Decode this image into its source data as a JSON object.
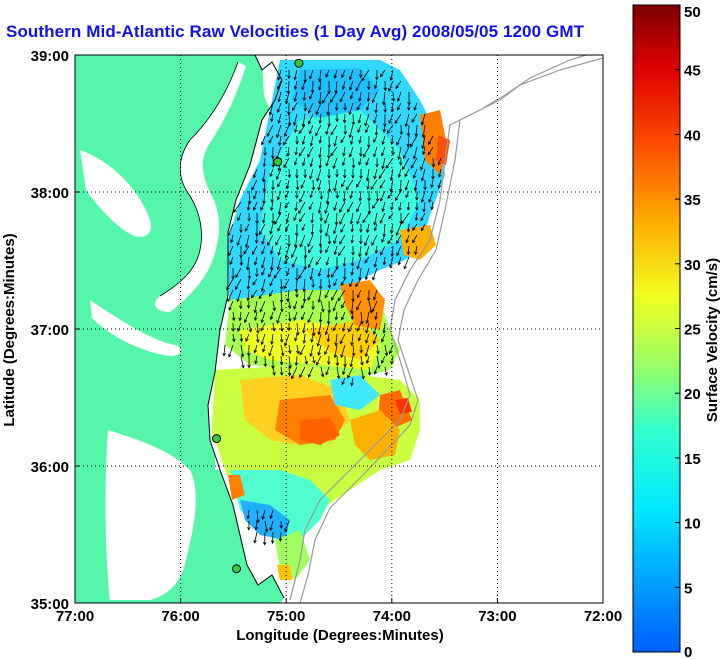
{
  "title": "Southern Mid-Atlantic Raw Velocities (1 Day Avg) 2008/05/05 1200 GMT",
  "colors": {
    "title": "#1010ee",
    "land": "#55f5aa",
    "site_marker": "#33cc33",
    "vector": "#000000",
    "grid": "#000000"
  },
  "chart_data": {
    "type": "heatmap",
    "xlabel": "Longitude (Degrees:Minutes)",
    "ylabel": "Latitude (Degrees:Minutes)",
    "xlim": [
      -77,
      -72
    ],
    "ylim": [
      35,
      39
    ],
    "x_tick_labels": [
      "77:00",
      "76:00",
      "75:00",
      "74:00",
      "73:00",
      "72:00"
    ],
    "y_tick_labels": [
      "35:00",
      "36:00",
      "37:00",
      "38:00",
      "39:00"
    ],
    "grid": true,
    "colorbar": {
      "label": "Surface Velocity (cm/s)",
      "range": [
        0,
        50
      ],
      "ticks": [
        "0",
        "5",
        "10",
        "15",
        "20",
        "25",
        "30",
        "35",
        "40",
        "45",
        "50"
      ],
      "colormap": "jet"
    },
    "site_markers": [
      {
        "lon": -74.88,
        "lat": 38.94
      },
      {
        "lon": -75.08,
        "lat": 38.22
      },
      {
        "lon": -75.66,
        "lat": 36.2
      },
      {
        "lon": -75.47,
        "lat": 35.25
      }
    ],
    "velocity_field_regions": [
      {
        "lon": -74.8,
        "lat": 38.4,
        "speed": 12
      },
      {
        "lon": -74.4,
        "lat": 37.9,
        "speed": 13
      },
      {
        "lon": -74.9,
        "lat": 37.5,
        "speed": 17
      },
      {
        "lon": -74.5,
        "lat": 37.0,
        "speed": 24
      },
      {
        "lon": -74.2,
        "lat": 37.2,
        "speed": 30
      },
      {
        "lon": -75.0,
        "lat": 36.6,
        "speed": 25
      },
      {
        "lon": -74.9,
        "lat": 36.3,
        "speed": 30
      },
      {
        "lon": -74.2,
        "lat": 36.4,
        "speed": 35
      },
      {
        "lon": -75.3,
        "lat": 35.9,
        "speed": 20
      },
      {
        "lon": -75.0,
        "lat": 35.6,
        "speed": 16
      },
      {
        "lon": -73.9,
        "lat": 38.5,
        "speed": 28
      }
    ]
  }
}
